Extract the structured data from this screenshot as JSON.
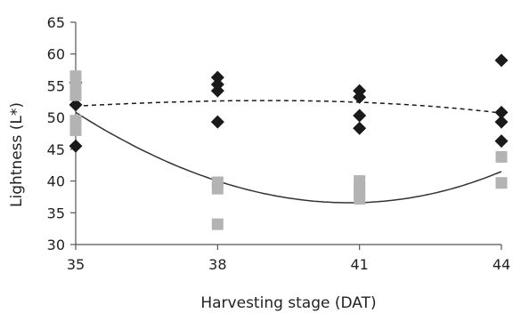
{
  "chart_data": {
    "type": "scatter",
    "title": "",
    "xlabel": "Harvesting stage (DAT)",
    "ylabel": "Lightness (L*)",
    "x_ticks": [
      35,
      38,
      41,
      44
    ],
    "y_ticks": [
      30,
      35,
      40,
      45,
      50,
      55,
      60,
      65
    ],
    "xlim": [
      35,
      44
    ],
    "ylim": [
      30,
      65
    ],
    "grid": false,
    "legend": "none",
    "series": [
      {
        "marker": "diamond",
        "color": "#1a1a1a",
        "points": [
          [
            35,
            55.5
          ],
          [
            35,
            52.0
          ],
          [
            35,
            45.5
          ],
          [
            38,
            56.3
          ],
          [
            38,
            55.2
          ],
          [
            38,
            54.2
          ],
          [
            38,
            49.3
          ],
          [
            41,
            54.2
          ],
          [
            41,
            53.2
          ],
          [
            41,
            50.3
          ],
          [
            41,
            48.3
          ],
          [
            44,
            59.0
          ],
          [
            44,
            50.8
          ],
          [
            44,
            49.3
          ],
          [
            44,
            46.3
          ]
        ],
        "trend": {
          "style": "dashed",
          "color": "#1a1a1a",
          "points": [
            [
              35,
              51.8
            ],
            [
              38,
              52.6
            ],
            [
              41,
              52.4
            ],
            [
              44,
              50.7
            ]
          ]
        }
      },
      {
        "marker": "square",
        "color": "#b3b3b3",
        "points": [
          [
            35,
            56.5
          ],
          [
            35,
            55.0
          ],
          [
            35,
            53.5
          ],
          [
            35,
            49.5
          ],
          [
            35,
            48.0
          ],
          [
            38,
            39.8
          ],
          [
            38,
            38.8
          ],
          [
            38,
            33.2
          ],
          [
            41,
            40.0
          ],
          [
            41,
            39.0
          ],
          [
            41,
            38.0
          ],
          [
            41,
            37.2
          ],
          [
            44,
            43.8
          ],
          [
            44,
            39.7
          ]
        ],
        "trend": {
          "style": "solid",
          "color": "#333333",
          "points": [
            [
              35,
              50.8
            ],
            [
              38,
              40.0
            ],
            [
              41,
              36.6
            ],
            [
              44,
              41.5
            ]
          ]
        }
      }
    ]
  }
}
